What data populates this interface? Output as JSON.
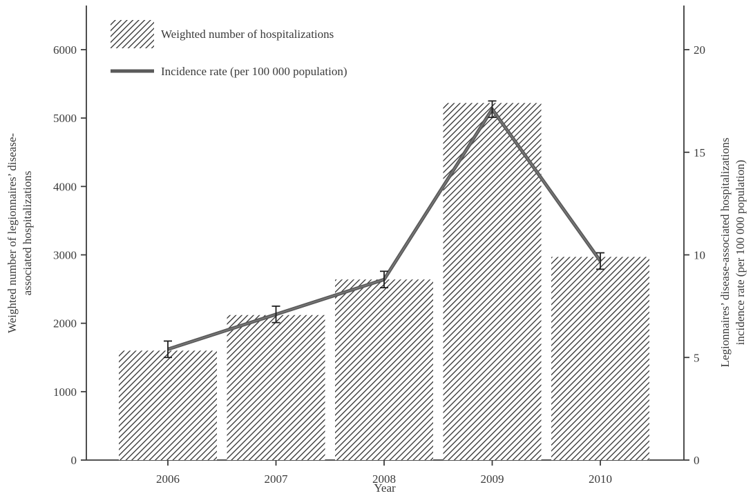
{
  "chart_data": {
    "type": "bar",
    "title": "",
    "categories": [
      "2006",
      "2007",
      "2008",
      "2009",
      "2010"
    ],
    "xlabel": "Year",
    "series": [
      {
        "name": "Weighted number of hospitalizations",
        "type": "bar",
        "axis": "left",
        "values": [
          1600,
          2120,
          2640,
          5220,
          2970
        ]
      },
      {
        "name": "Incidence rate (per 100 000 population)",
        "type": "line",
        "axis": "right",
        "values": [
          5.4,
          7.1,
          8.8,
          17.1,
          9.7
        ],
        "error_low": [
          5.0,
          6.7,
          8.4,
          16.7,
          9.3
        ],
        "error_high": [
          5.8,
          7.5,
          9.2,
          17.5,
          10.1
        ]
      }
    ],
    "left_axis": {
      "label_line1": "Weighted number of legionnaires’ disease-",
      "label_line2": "associated hospitalizations",
      "ylim": [
        0,
        6500
      ],
      "ticks": [
        "0",
        "1000",
        "2000",
        "3000",
        "4000",
        "5000",
        "6000"
      ]
    },
    "right_axis": {
      "label_line1": "Legionnaires’ disease-associated hospitalizations",
      "label_line2": "incidence rate (per 100 000 population)",
      "ylim": [
        0,
        21.67
      ],
      "ticks": [
        "0",
        "5",
        "10",
        "15",
        "20"
      ]
    },
    "grid": false,
    "legend_position": "top-left",
    "colors": {
      "axis": "#3a3a3a",
      "bar_hatch": "#2e2e2e",
      "line": "#5a5a5a",
      "error_bar": "#1e1e1e"
    }
  }
}
